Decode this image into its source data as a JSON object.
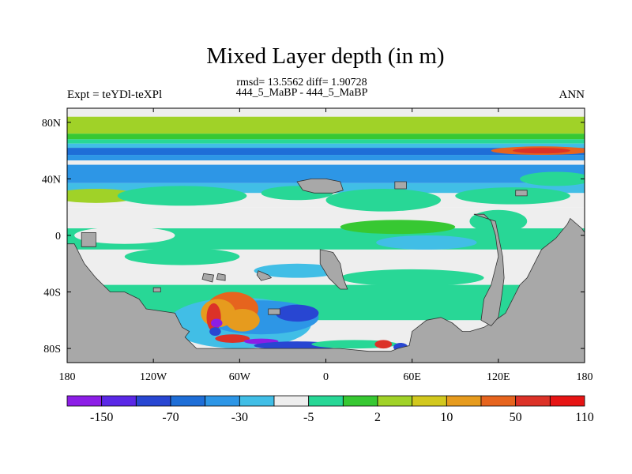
{
  "chart_data": {
    "type": "heatmap",
    "title": "Mixed Layer depth (in m)",
    "subtitle_stats": "rmsd= 13.5562 diff= 1.90728",
    "subtitle_cases": "444_5_MaBP - 444_5_MaBP",
    "left_label": "Expt = teYDl-teXPl",
    "right_label": "ANN",
    "xlabel": "",
    "ylabel": "",
    "xlim": [
      -180,
      180
    ],
    "ylim": [
      -90,
      90
    ],
    "x_ticks": [
      {
        "value": -180,
        "label": "180"
      },
      {
        "value": -120,
        "label": "120W"
      },
      {
        "value": -60,
        "label": "60W"
      },
      {
        "value": 0,
        "label": "0"
      },
      {
        "value": 60,
        "label": "60E"
      },
      {
        "value": 120,
        "label": "120E"
      },
      {
        "value": 180,
        "label": "180"
      }
    ],
    "y_ticks": [
      {
        "value": 80,
        "label": "80N"
      },
      {
        "value": 40,
        "label": "40N"
      },
      {
        "value": 0,
        "label": "0"
      },
      {
        "value": -40,
        "label": "40S"
      },
      {
        "value": -80,
        "label": "80S"
      }
    ],
    "land_color": "#a8a8a8",
    "colorbar": {
      "colors": [
        "#8c1ee6",
        "#5a28e6",
        "#2846d2",
        "#1e6ed7",
        "#2d96e6",
        "#41bee6",
        "#eeeeee",
        "#28d796",
        "#37c832",
        "#a0d228",
        "#d2c81e",
        "#e69b1e",
        "#e6641e",
        "#dc3228",
        "#e61414"
      ],
      "labels": [
        {
          "index": 1,
          "text": "-150"
        },
        {
          "index": 3,
          "text": "-70"
        },
        {
          "index": 5,
          "text": "-30"
        },
        {
          "index": 7,
          "text": "-5"
        },
        {
          "index": 9,
          "text": "2"
        },
        {
          "index": 11,
          "text": "10"
        },
        {
          "index": 13,
          "text": "50"
        },
        {
          "index": 15,
          "text": "110"
        }
      ]
    },
    "bands": [
      {
        "lat_top": 90,
        "lat_bot": 84,
        "color": "#eeeeee"
      },
      {
        "lat_top": 84,
        "lat_bot": 72,
        "color": "#a0d228"
      },
      {
        "lat_top": 72,
        "lat_bot": 68,
        "color": "#37c832"
      },
      {
        "lat_top": 68,
        "lat_bot": 65,
        "color": "#28d796"
      },
      {
        "lat_top": 65,
        "lat_bot": 62,
        "color": "#41bee6"
      },
      {
        "lat_top": 62,
        "lat_bot": 57,
        "color": "#1e6ed7"
      },
      {
        "lat_top": 57,
        "lat_bot": 53,
        "color": "#2d96e6"
      },
      {
        "lat_top": 53,
        "lat_bot": 50,
        "color": "#eeeeee"
      },
      {
        "lat_top": 50,
        "lat_bot": 37,
        "color": "#2d96e6"
      },
      {
        "lat_top": 37,
        "lat_bot": 30,
        "color": "#41bee6"
      },
      {
        "lat_top": 30,
        "lat_bot": 20,
        "color": "#eeeeee"
      },
      {
        "lat_top": 20,
        "lat_bot": 5,
        "color": "#eeeeee"
      },
      {
        "lat_top": 5,
        "lat_bot": -10,
        "color": "#28d796"
      },
      {
        "lat_top": -10,
        "lat_bot": -35,
        "color": "#eeeeee"
      },
      {
        "lat_top": -35,
        "lat_bot": -60,
        "color": "#28d796"
      },
      {
        "lat_top": -60,
        "lat_bot": -80,
        "color": "#eeeeee"
      },
      {
        "lat_top": -80,
        "lat_bot": -90,
        "color": "#eeeeee"
      }
    ],
    "features": [
      {
        "lon": -160,
        "lat": 28,
        "rlon": 30,
        "rlat": 5,
        "color": "#a0d228"
      },
      {
        "lon": -100,
        "lat": 28,
        "rlon": 45,
        "rlat": 7,
        "color": "#28d796"
      },
      {
        "lon": -20,
        "lat": 30,
        "rlon": 25,
        "rlat": 5,
        "color": "#28d796"
      },
      {
        "lon": 40,
        "lat": 25,
        "rlon": 40,
        "rlat": 8,
        "color": "#28d796"
      },
      {
        "lon": 130,
        "lat": 28,
        "rlon": 40,
        "rlat": 6,
        "color": "#28d796"
      },
      {
        "lon": 150,
        "lat": 60,
        "rlon": 35,
        "rlat": 3,
        "color": "#e6641e"
      },
      {
        "lon": 150,
        "lat": 60,
        "rlon": 20,
        "rlat": 2,
        "color": "#dc3228"
      },
      {
        "lon": -140,
        "lat": 0,
        "rlon": 35,
        "rlat": 6,
        "color": "#eeeeee"
      },
      {
        "lon": 50,
        "lat": 6,
        "rlon": 40,
        "rlat": 5,
        "color": "#37c832"
      },
      {
        "lon": 70,
        "lat": -5,
        "rlon": 35,
        "rlat": 5,
        "color": "#41bee6"
      },
      {
        "lon": 120,
        "lat": 10,
        "rlon": 20,
        "rlat": 8,
        "color": "#28d796"
      },
      {
        "lon": -100,
        "lat": -15,
        "rlon": 40,
        "rlat": 6,
        "color": "#28d796"
      },
      {
        "lon": 60,
        "lat": -30,
        "rlon": 50,
        "rlat": 6,
        "color": "#28d796"
      },
      {
        "lon": -20,
        "lat": -25,
        "rlon": 30,
        "rlat": 5,
        "color": "#41bee6"
      },
      {
        "lon": -60,
        "lat": -62,
        "rlon": 50,
        "rlat": 18,
        "color": "#41bee6"
      },
      {
        "lon": -45,
        "lat": -58,
        "rlon": 40,
        "rlat": 12,
        "color": "#2d96e6"
      },
      {
        "lon": -20,
        "lat": -55,
        "rlon": 15,
        "rlat": 6,
        "color": "#2846d2"
      },
      {
        "lon": -70,
        "lat": -55,
        "rlon": 12,
        "rlat": 6,
        "color": "#2846d2"
      },
      {
        "lon": -65,
        "lat": -52,
        "rlon": 18,
        "rlat": 12,
        "color": "#e6641e"
      },
      {
        "lon": -75,
        "lat": -55,
        "rlon": 12,
        "rlat": 10,
        "color": "#e69b1e"
      },
      {
        "lon": -58,
        "lat": -60,
        "rlon": 12,
        "rlat": 8,
        "color": "#e69b1e"
      },
      {
        "lon": -78,
        "lat": -58,
        "rlon": 5,
        "rlat": 10,
        "color": "#dc3228"
      },
      {
        "lon": -76,
        "lat": -62,
        "rlon": 4,
        "rlat": 3,
        "color": "#8c1ee6"
      },
      {
        "lon": -77,
        "lat": -68,
        "rlon": 4,
        "rlat": 3,
        "color": "#2846d2"
      },
      {
        "lon": -65,
        "lat": -73,
        "rlon": 12,
        "rlat": 3,
        "color": "#dc3228"
      },
      {
        "lon": -45,
        "lat": -75,
        "rlon": 12,
        "rlat": 2,
        "color": "#8c1ee6"
      },
      {
        "lon": -20,
        "lat": -78,
        "rlon": 30,
        "rlat": 3,
        "color": "#2846d2"
      },
      {
        "lon": 20,
        "lat": -77,
        "rlon": 30,
        "rlat": 3,
        "color": "#28d796"
      },
      {
        "lon": 40,
        "lat": -77,
        "rlon": 6,
        "rlat": 3,
        "color": "#dc3228"
      },
      {
        "lon": 52,
        "lat": -79,
        "rlon": 5,
        "rlat": 3,
        "color": "#2846d2"
      },
      {
        "lon": -120,
        "lat": -45,
        "rlon": 15,
        "rlat": 5,
        "color": "#28d796"
      },
      {
        "lon": 30,
        "lat": -50,
        "rlon": 20,
        "rlat": 6,
        "color": "#28d796"
      },
      {
        "lon": 160,
        "lat": 40,
        "rlon": 25,
        "rlat": 5,
        "color": "#28d796"
      }
    ],
    "land": [
      [
        -180,
        -6,
        -175,
        -6,
        -168,
        -20,
        -160,
        -30,
        -150,
        -40,
        -140,
        -40,
        -130,
        -45,
        -125,
        -52,
        -105,
        -55,
        -100,
        -65,
        -95,
        -68,
        -98,
        -72,
        -90,
        -80,
        -80,
        -80,
        -60,
        -80,
        0,
        -80,
        10,
        -80,
        30,
        -82,
        45,
        -82,
        50,
        -80,
        58,
        -78,
        60,
        -68,
        70,
        -60,
        80,
        -58,
        88,
        -62,
        95,
        -68,
        100,
        -68,
        110,
        -65,
        118,
        -60,
        125,
        -55,
        130,
        -45,
        135,
        -35,
        140,
        -30,
        145,
        -20,
        150,
        -10,
        160,
        -2,
        168,
        8,
        170,
        12,
        178,
        5,
        180,
        2,
        180,
        -90,
        -180,
        -90
      ],
      [
        103,
        15,
        110,
        15,
        115,
        10,
        118,
        0,
        120,
        -15,
        115,
        -35,
        110,
        -45,
        108,
        -60,
        115,
        -64,
        120,
        -58,
        122,
        -45,
        124,
        -30,
        123,
        -15,
        120,
        0,
        118,
        10
      ],
      [
        -4,
        -10,
        5,
        -12,
        10,
        -20,
        12,
        -30,
        15,
        -38,
        10,
        -38,
        2,
        -30,
        -4,
        -20
      ],
      [
        -170,
        2,
        -160,
        2,
        -160,
        -8,
        -170,
        -8
      ],
      [
        -20,
        38,
        -10,
        40,
        0,
        40,
        10,
        38,
        12,
        32,
        5,
        30,
        -8,
        30,
        -16,
        32
      ],
      [
        -47,
        -25,
        -40,
        -28,
        -38,
        -30,
        -45,
        -32,
        -48,
        -28
      ],
      [
        -75,
        -27,
        -70,
        -28,
        -70,
        -32,
        -76,
        -31
      ],
      [
        -120,
        -37,
        -115,
        -37,
        -115,
        -40,
        -120,
        -40
      ],
      [
        -85,
        -27,
        -78,
        -28,
        -79,
        -33,
        -86,
        -31
      ],
      [
        48,
        38,
        56,
        38,
        56,
        33,
        48,
        33
      ],
      [
        132,
        32,
        140,
        32,
        140,
        28,
        132,
        28
      ],
      [
        -40,
        -52,
        -32,
        -52,
        -32,
        -56,
        -40,
        -56
      ]
    ]
  }
}
